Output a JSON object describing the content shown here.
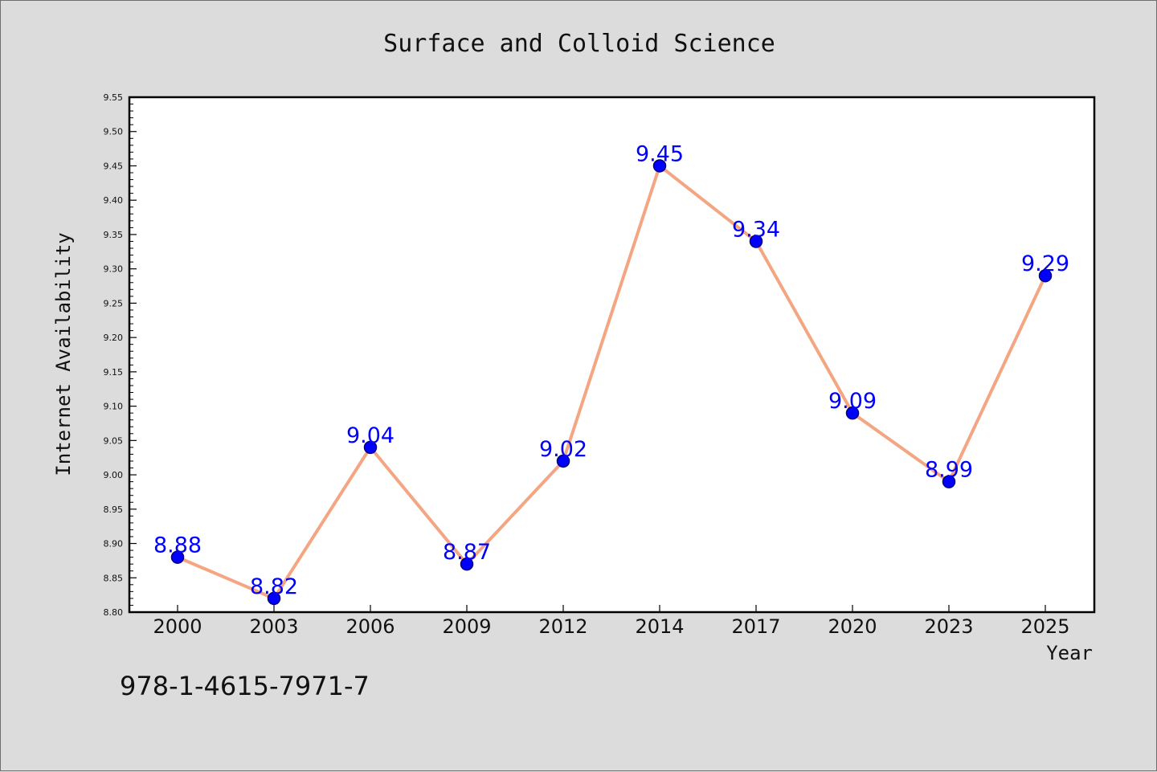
{
  "chart_data": {
    "type": "line",
    "title": "Surface and Colloid Science",
    "xlabel": "Year",
    "ylabel": "Internet Availability",
    "categories": [
      "2000",
      "2003",
      "2006",
      "2009",
      "2012",
      "2014",
      "2017",
      "2020",
      "2023",
      "2025"
    ],
    "values": [
      8.88,
      8.82,
      9.04,
      8.87,
      9.02,
      9.45,
      9.34,
      9.09,
      8.99,
      9.29
    ],
    "data_labels": [
      "8.88",
      "8.82",
      "9.04",
      "8.87",
      "9.02",
      "9.45",
      "9.34",
      "9.09",
      "8.99",
      "9.29"
    ],
    "ylim": [
      8.8,
      9.55
    ],
    "yticks": [
      "8.80",
      "8.85",
      "8.90",
      "8.95",
      "9.00",
      "9.05",
      "9.10",
      "9.15",
      "9.20",
      "9.25",
      "9.30",
      "9.35",
      "9.40",
      "9.45",
      "9.50",
      "9.55"
    ],
    "grid": false,
    "legend": "none",
    "colors": {
      "line": "#f4a582",
      "marker": "#0000ff",
      "marker_edge": "#000080",
      "data_label": "#0000ff",
      "plot_background": "#ffffff",
      "figure_background": "#dcdcdc"
    }
  },
  "annotation": {
    "isbn": "978-1-4615-7971-7"
  }
}
